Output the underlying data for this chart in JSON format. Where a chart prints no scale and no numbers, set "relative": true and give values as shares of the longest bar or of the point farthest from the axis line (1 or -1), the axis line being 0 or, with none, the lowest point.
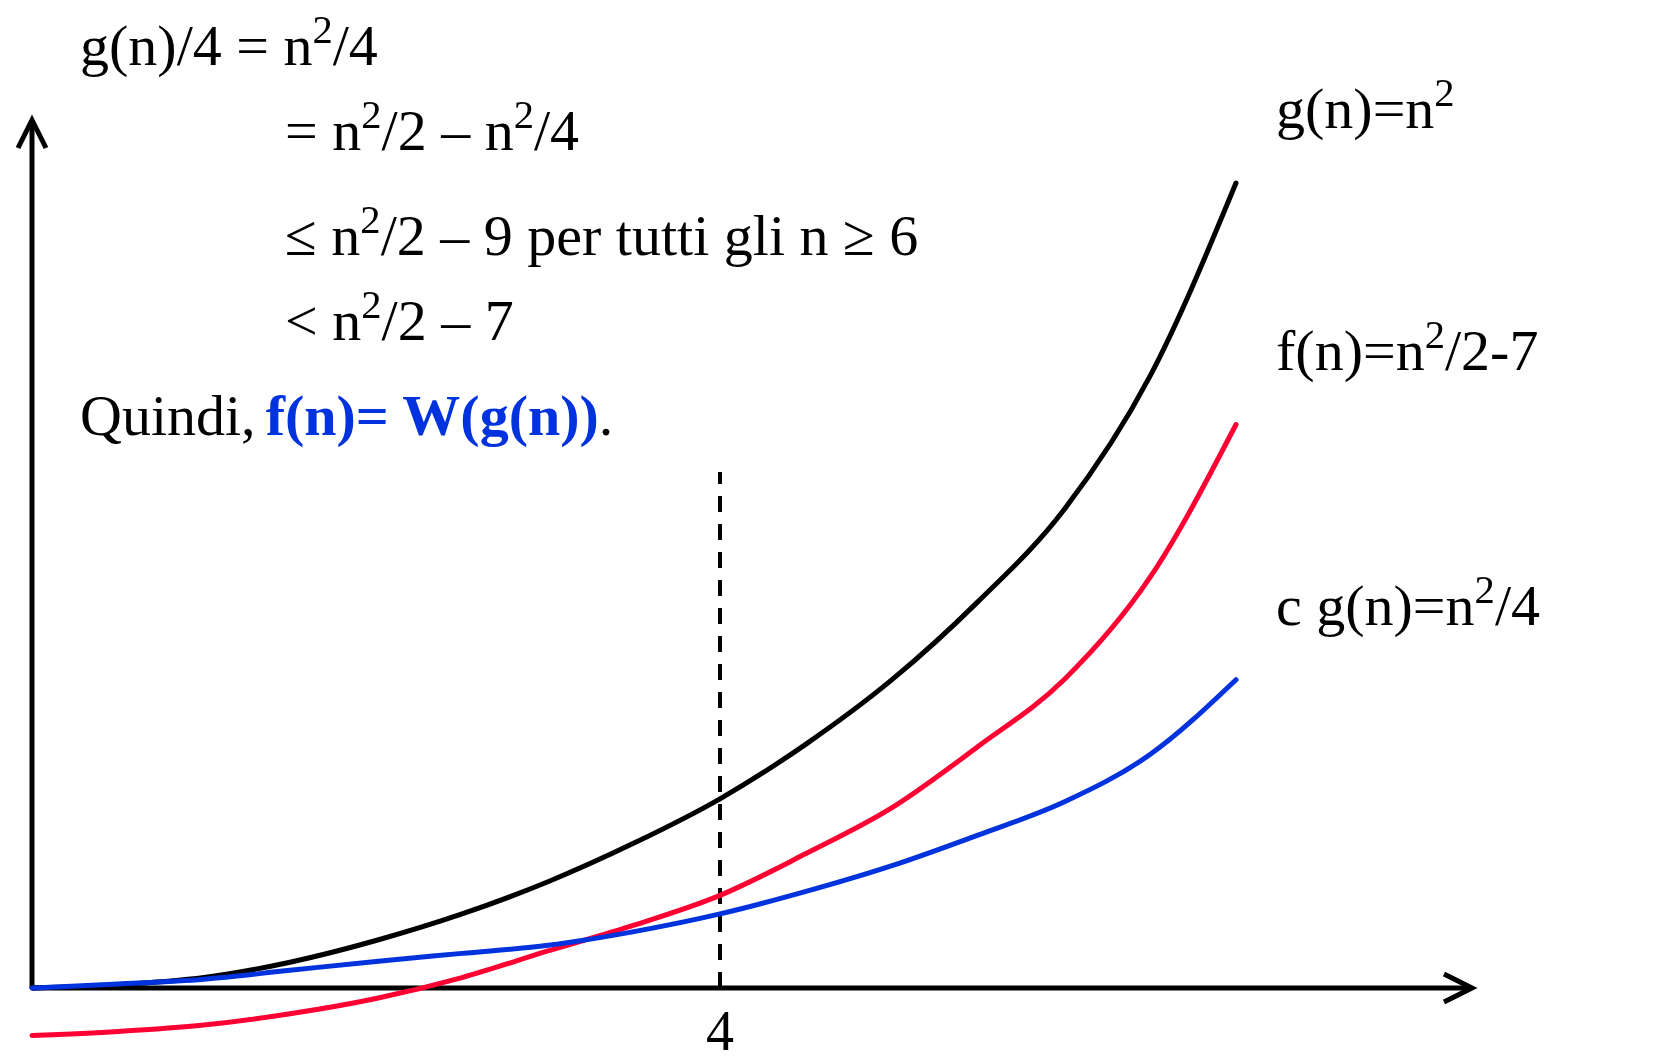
{
  "chart_data": {
    "type": "line",
    "relative": true,
    "categories": [
      null,
      null,
      null,
      null,
      null,
      null,
      null,
      null,
      null,
      null,
      null,
      null,
      null,
      null,
      null
    ],
    "series": [
      {
        "name": "g(n)=n$^{2}$",
        "color": "#000000",
        "values": [
          0,
          0.004,
          0.013,
          0.032,
          0.059,
          0.092,
          0.132,
          0.18,
          0.235,
          0.303,
          0.383,
          0.48,
          0.594,
          0.76,
          1
        ]
      },
      {
        "name": "f(n)=n$^{2}$/2-7",
        "color": "#ff0033",
        "values": [
          -0.059,
          -0.054,
          -0.046,
          -0.032,
          -0.013,
          0.013,
          0.046,
          0.078,
          0.115,
          0.167,
          0.224,
          0.3,
          0.383,
          0.51,
          0.7
        ]
      },
      {
        "name": "c g(n)=n$^{2}$/4",
        "color": "#0033dd",
        "values": [
          0,
          0.005,
          0.011,
          0.022,
          0.033,
          0.043,
          0.053,
          0.07,
          0.092,
          0.12,
          0.152,
          0.19,
          0.231,
          0.29,
          0.383
        ]
      }
    ],
    "ref_lines": [
      {
        "axis": "x",
        "label": "4",
        "line_style": "dashed",
        "color": "#000000"
      }
    ],
    "annotations": [
      "g(n)/4 = n$^{2}$/4",
      "= n$^{2}$/2 – n$^{2}$/4",
      "≤ n$^{2}$/2 – 9 per tutti gli n ≥ 6",
      "< n$^{2}$/2 – 7",
      "Quindi,",
      "f(n)= W(g(n))",
      "."
    ],
    "legend": false,
    "line_style": "solid"
  }
}
